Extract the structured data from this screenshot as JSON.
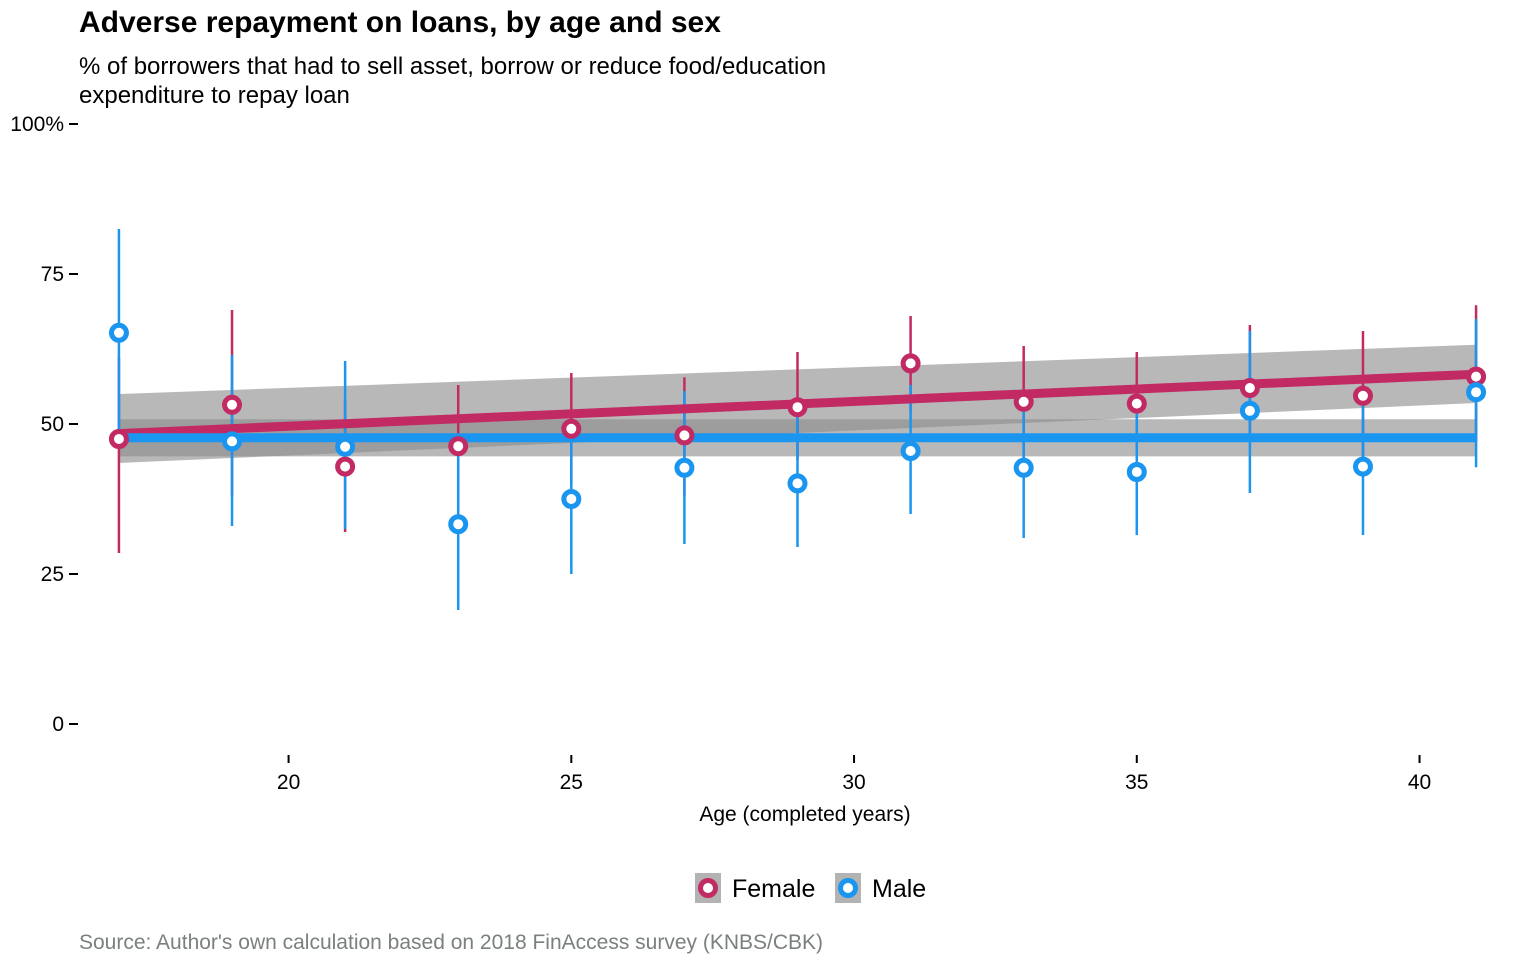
{
  "chart_data": {
    "type": "scatter",
    "title": "Adverse repayment on loans, by age and sex",
    "subtitle_lines": [
      "% of borrowers that had to sell asset, borrow or reduce food/education",
      "expenditure to repay loan"
    ],
    "caption": "Source: Author's own calculation based on 2018 FinAccess survey (KNBS/CBK)",
    "xlabel": "Age (completed years)",
    "ylabel": "",
    "xlim": [
      16.4,
      41.6
    ],
    "ylim": [
      -6,
      104
    ],
    "x_ticks": [
      {
        "value": 20,
        "label": "20"
      },
      {
        "value": 25,
        "label": "25"
      },
      {
        "value": 30,
        "label": "30"
      },
      {
        "value": 35,
        "label": "35"
      },
      {
        "value": 40,
        "label": "40"
      }
    ],
    "y_ticks": [
      {
        "value": 0,
        "label": "0"
      },
      {
        "value": 25,
        "label": "25"
      },
      {
        "value": 50,
        "label": "50"
      },
      {
        "value": 75,
        "label": "75"
      },
      {
        "value": 100,
        "label": "100%"
      }
    ],
    "grid": false,
    "legend_position": "bottom",
    "x": [
      17,
      19,
      21,
      23,
      25,
      27,
      29,
      31,
      33,
      35,
      37,
      39,
      41
    ],
    "series": [
      {
        "name": "Female",
        "color": "#c22a64",
        "values": [
          47.5,
          53.2,
          42.9,
          46.3,
          49.2,
          48.1,
          52.8,
          60.1,
          53.7,
          53.4,
          56.0,
          54.7,
          57.9
        ],
        "lower": [
          28.5,
          38.0,
          32.0,
          35.0,
          40.0,
          38.0,
          44.0,
          52.0,
          44.0,
          46.0,
          47.0,
          44.0,
          47.0
        ],
        "upper": [
          61.0,
          69.0,
          54.0,
          56.5,
          58.5,
          57.8,
          62.0,
          68.0,
          63.0,
          62.0,
          66.5,
          65.5,
          69.8
        ],
        "trend": [
          48.4,
          58.3
        ],
        "trend_band_lower": [
          43.5,
          53.5
        ],
        "trend_band_upper": [
          55.0,
          63.2
        ]
      },
      {
        "name": "Male",
        "color": "#1a96f0",
        "values": [
          65.2,
          47.1,
          46.2,
          33.3,
          37.5,
          42.7,
          40.1,
          45.5,
          42.7,
          42.0,
          52.2,
          42.9,
          55.3
        ],
        "lower": [
          48.0,
          33.0,
          32.5,
          19.0,
          25.0,
          30.0,
          29.5,
          35.0,
          31.0,
          31.5,
          38.5,
          31.5,
          42.8
        ],
        "upper": [
          82.5,
          61.5,
          60.5,
          47.0,
          50.0,
          55.5,
          52.0,
          56.5,
          55.0,
          52.0,
          65.5,
          54.0,
          67.5
        ],
        "trend": [
          47.7,
          47.7
        ],
        "trend_band_lower": [
          44.6,
          44.6
        ],
        "trend_band_upper": [
          50.8,
          50.8
        ]
      }
    ]
  }
}
